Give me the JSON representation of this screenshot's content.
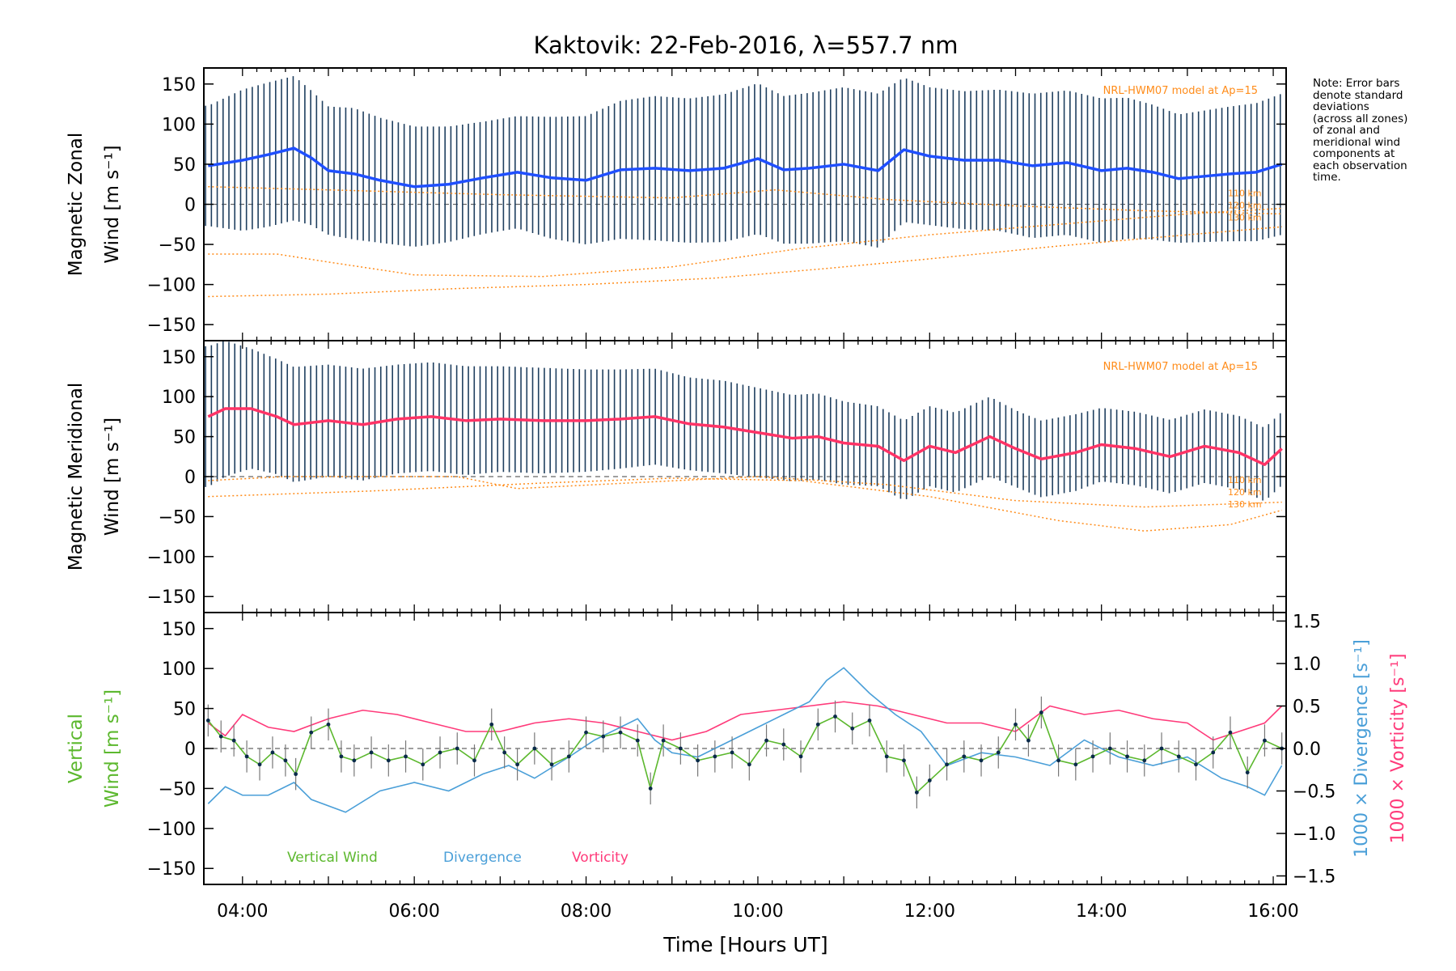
{
  "title": "Kaktovik: 22-Feb-2016, λ=557.7 nm",
  "xlabel": "Time [Hours UT]",
  "note": [
    "Note: Error bars",
    "denote standard",
    "deviations",
    "(across all zones)",
    "of zonal and",
    "meridional wind",
    "components at",
    "each observation",
    "time."
  ],
  "colors": {
    "zonal": "#1f4fff",
    "meridional": "#ff3366",
    "vertical": "#5cb82e",
    "divergence": "#4a9fd8",
    "vorticity": "#ff3a7a",
    "model": "#ff8c1a",
    "errorbar": "#1f3f5f"
  },
  "chart_data": [
    {
      "type": "line",
      "panel": "zonal",
      "ylabel_lines": [
        "Magnetic Zonal",
        "Wind [m s⁻¹]"
      ],
      "xlim": [
        3.55,
        16.15
      ],
      "ylim": [
        -170,
        170
      ],
      "yticks": [
        -150,
        -100,
        -50,
        0,
        50,
        100,
        150
      ],
      "model_label": "NRL-HWM07 model at Ap=15",
      "model_altitude_labels": [
        "110 km",
        "120 km",
        "130 km"
      ],
      "series": [
        {
          "role": "mean",
          "x": [
            3.6,
            4.0,
            4.3,
            4.6,
            4.8,
            5.0,
            5.3,
            5.6,
            6.0,
            6.4,
            6.8,
            7.2,
            7.6,
            8.0,
            8.4,
            8.8,
            9.2,
            9.6,
            10.0,
            10.3,
            10.6,
            11.0,
            11.4,
            11.7,
            12.0,
            12.4,
            12.8,
            13.2,
            13.6,
            14.0,
            14.3,
            14.6,
            14.9,
            15.2,
            15.5,
            15.8,
            16.1
          ],
          "y": [
            48,
            55,
            62,
            70,
            58,
            42,
            38,
            30,
            22,
            25,
            33,
            40,
            33,
            30,
            43,
            45,
            42,
            45,
            57,
            43,
            45,
            50,
            42,
            68,
            60,
            55,
            55,
            48,
            52,
            42,
            45,
            40,
            32,
            35,
            38,
            40,
            50
          ],
          "err": [
            75,
            88,
            90,
            90,
            84,
            80,
            82,
            78,
            75,
            72,
            70,
            70,
            76,
            80,
            86,
            90,
            90,
            92,
            94,
            92,
            94,
            96,
            96,
            90,
            86,
            86,
            88,
            90,
            90,
            90,
            88,
            84,
            80,
            82,
            84,
            86,
            88
          ]
        },
        {
          "role": "model",
          "x": [
            3.6,
            5.0,
            6.5,
            8.0,
            9.5,
            10.8,
            12.0,
            13.5,
            15.0,
            16.1
          ],
          "y": [
            -115,
            -112,
            -105,
            -100,
            -92,
            -80,
            -68,
            -52,
            -38,
            -28
          ]
        },
        {
          "role": "model",
          "x": [
            3.6,
            4.4,
            5.0,
            6.0,
            7.5,
            9.0,
            10.5,
            12.0,
            13.5,
            15.0,
            16.1
          ],
          "y": [
            -62,
            -62,
            -72,
            -88,
            -90,
            -78,
            -55,
            -38,
            -25,
            -12,
            -5
          ]
        },
        {
          "role": "model",
          "x": [
            3.6,
            5.0,
            7.0,
            9.0,
            10.2,
            11.5,
            13.0,
            14.5,
            16.1
          ],
          "y": [
            22,
            18,
            12,
            8,
            18,
            6,
            -2,
            -8,
            -12
          ]
        }
      ]
    },
    {
      "type": "line",
      "panel": "meridional",
      "ylabel_lines": [
        "Magnetic Meridional",
        "Wind [m s⁻¹]"
      ],
      "xlim": [
        3.55,
        16.15
      ],
      "ylim": [
        -170,
        170
      ],
      "yticks": [
        -150,
        -100,
        -50,
        0,
        50,
        100,
        150
      ],
      "model_label": "NRL-HWM07 model at Ap=15",
      "model_altitude_labels": [
        "110 km",
        "120 km",
        "130 km"
      ],
      "series": [
        {
          "role": "mean",
          "x": [
            3.6,
            3.8,
            4.1,
            4.4,
            4.6,
            5.0,
            5.4,
            5.8,
            6.2,
            6.6,
            7.0,
            7.5,
            8.0,
            8.4,
            8.8,
            9.2,
            9.6,
            10.0,
            10.4,
            10.7,
            11.0,
            11.4,
            11.7,
            12.0,
            12.3,
            12.7,
            13.0,
            13.3,
            13.7,
            14.0,
            14.4,
            14.8,
            15.2,
            15.6,
            15.9,
            16.1
          ],
          "y": [
            75,
            85,
            85,
            75,
            65,
            70,
            65,
            72,
            75,
            70,
            72,
            70,
            70,
            72,
            75,
            66,
            62,
            55,
            48,
            50,
            42,
            38,
            20,
            38,
            30,
            50,
            35,
            22,
            30,
            40,
            35,
            25,
            38,
            30,
            15,
            35
          ],
          "err": [
            88,
            85,
            75,
            72,
            72,
            70,
            70,
            68,
            68,
            68,
            66,
            66,
            64,
            62,
            60,
            58,
            58,
            56,
            54,
            54,
            52,
            50,
            50,
            50,
            50,
            50,
            48,
            48,
            48,
            46,
            46,
            46,
            46,
            46,
            46,
            46
          ]
        },
        {
          "role": "model",
          "x": [
            3.6,
            5.5,
            7.5,
            9.0,
            10.5,
            12.0,
            13.5,
            14.5,
            15.5,
            16.1
          ],
          "y": [
            -25,
            -18,
            -8,
            -2,
            -5,
            -25,
            -55,
            -68,
            -60,
            -42
          ]
        },
        {
          "role": "model",
          "x": [
            3.6,
            4.5,
            5.5,
            6.5,
            7.2,
            8.5,
            10.0,
            11.5,
            13.0,
            14.5,
            16.1
          ],
          "y": [
            -5,
            0,
            0,
            0,
            -15,
            -8,
            0,
            -10,
            -30,
            -38,
            -32
          ]
        }
      ]
    },
    {
      "type": "line",
      "panel": "vertical",
      "ylabel_lines": [
        "Vertical",
        "Wind [m s⁻¹]"
      ],
      "y2label_lines": [
        "1000 × Divergence [s⁻¹]",
        "1000 × Vorticity [s⁻¹]"
      ],
      "xlim": [
        3.55,
        16.15
      ],
      "ylim": [
        -170,
        170
      ],
      "yticks": [
        -150,
        -100,
        -50,
        0,
        50,
        100,
        150
      ],
      "y2lim": [
        -1.6,
        1.6
      ],
      "y2ticks": [
        "1.5",
        "1.0",
        "0.5",
        "0.0",
        "−0.5",
        "−1.0",
        "−1.5"
      ],
      "xticks": [
        "04:00",
        "06:00",
        "08:00",
        "10:00",
        "12:00",
        "14:00",
        "16:00"
      ],
      "legend": [
        "Vertical Wind",
        "Divergence",
        "Vorticity"
      ],
      "series": [
        {
          "name": "Vertical Wind",
          "role": "vertical",
          "x": [
            3.6,
            3.75,
            3.9,
            4.05,
            4.2,
            4.35,
            4.5,
            4.62,
            4.8,
            5.0,
            5.15,
            5.3,
            5.5,
            5.7,
            5.9,
            6.1,
            6.3,
            6.5,
            6.7,
            6.9,
            7.05,
            7.2,
            7.4,
            7.6,
            7.8,
            8.0,
            8.2,
            8.4,
            8.6,
            8.75,
            8.9,
            9.1,
            9.3,
            9.5,
            9.7,
            9.9,
            10.1,
            10.3,
            10.5,
            10.7,
            10.9,
            11.1,
            11.3,
            11.5,
            11.7,
            11.85,
            12.0,
            12.2,
            12.4,
            12.6,
            12.8,
            13.0,
            13.15,
            13.3,
            13.5,
            13.7,
            13.9,
            14.1,
            14.3,
            14.5,
            14.7,
            14.9,
            15.1,
            15.3,
            15.5,
            15.7,
            15.9,
            16.1
          ],
          "y": [
            35,
            15,
            10,
            -10,
            -20,
            -5,
            -15,
            -32,
            20,
            30,
            -10,
            -15,
            -5,
            -15,
            -10,
            -20,
            -5,
            0,
            -15,
            30,
            -5,
            -20,
            0,
            -20,
            -10,
            20,
            15,
            20,
            10,
            -50,
            10,
            0,
            -15,
            -10,
            -5,
            -20,
            10,
            5,
            -10,
            30,
            40,
            25,
            35,
            -10,
            -15,
            -55,
            -40,
            -20,
            -10,
            -15,
            -5,
            30,
            10,
            45,
            -15,
            -20,
            -10,
            0,
            -10,
            -15,
            0,
            -10,
            -20,
            -5,
            20,
            -30,
            10,
            0
          ]
        },
        {
          "name": "Divergence",
          "role": "divergence",
          "x": [
            3.6,
            3.8,
            4.0,
            4.3,
            4.6,
            4.8,
            5.2,
            5.6,
            6.0,
            6.4,
            6.8,
            7.1,
            7.4,
            7.8,
            8.1,
            8.4,
            8.6,
            8.8,
            9.0,
            9.3,
            9.6,
            10.0,
            10.3,
            10.6,
            10.8,
            11.0,
            11.3,
            11.6,
            11.9,
            12.2,
            12.6,
            13.0,
            13.4,
            13.8,
            14.2,
            14.6,
            15.0,
            15.4,
            15.7,
            15.9,
            16.1
          ],
          "y": [
            -0.65,
            -0.45,
            -0.55,
            -0.55,
            -0.4,
            -0.6,
            -0.75,
            -0.5,
            -0.4,
            -0.5,
            -0.3,
            -0.2,
            -0.35,
            -0.1,
            0.1,
            0.25,
            0.35,
            0.1,
            -0.05,
            -0.1,
            0.05,
            0.25,
            0.4,
            0.55,
            0.8,
            0.95,
            0.65,
            0.4,
            0.2,
            -0.2,
            -0.05,
            -0.1,
            -0.2,
            0.1,
            -0.1,
            -0.2,
            -0.1,
            -0.35,
            -0.45,
            -0.55,
            -0.2
          ]
        },
        {
          "name": "Vorticity",
          "role": "vorticity",
          "x": [
            3.6,
            3.8,
            4.0,
            4.3,
            4.6,
            5.0,
            5.4,
            5.8,
            6.2,
            6.6,
            7.0,
            7.4,
            7.8,
            8.2,
            8.6,
            9.0,
            9.4,
            9.8,
            10.2,
            10.6,
            11.0,
            11.4,
            11.8,
            12.2,
            12.6,
            13.0,
            13.4,
            13.8,
            14.2,
            14.6,
            15.0,
            15.3,
            15.6,
            15.9,
            16.1
          ],
          "y": [
            0.3,
            0.15,
            0.4,
            0.25,
            0.2,
            0.35,
            0.45,
            0.4,
            0.3,
            0.2,
            0.2,
            0.3,
            0.35,
            0.3,
            0.2,
            0.1,
            0.2,
            0.4,
            0.45,
            0.5,
            0.55,
            0.5,
            0.4,
            0.3,
            0.3,
            0.2,
            0.5,
            0.4,
            0.45,
            0.35,
            0.3,
            0.1,
            0.2,
            0.3,
            0.5
          ]
        }
      ]
    }
  ]
}
